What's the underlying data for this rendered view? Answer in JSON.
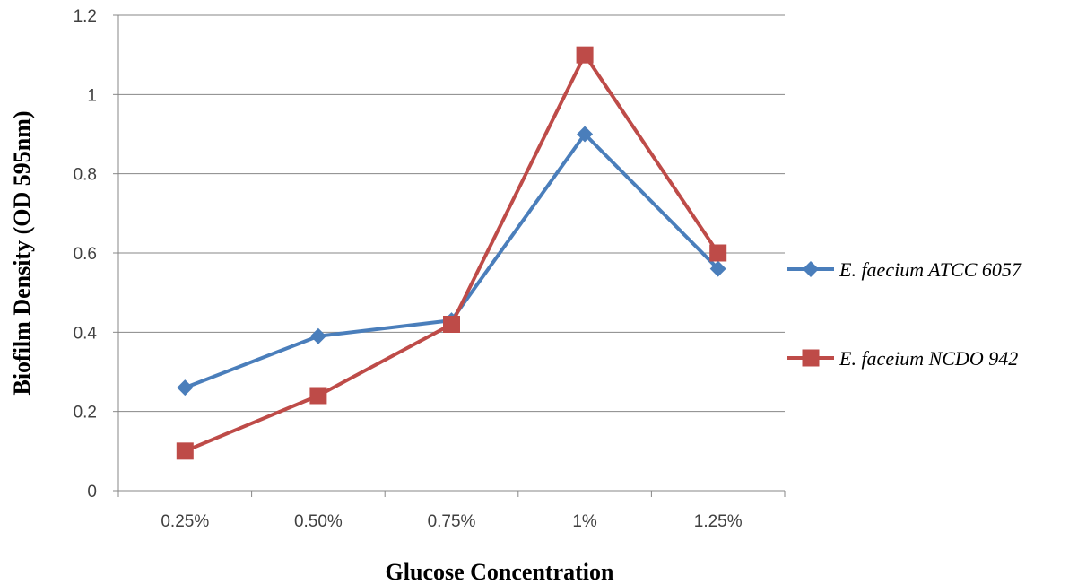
{
  "chart_data": {
    "type": "line",
    "title": "",
    "xlabel": "Glucose Concentration",
    "ylabel": "Biofilm Density (OD 595nm)",
    "categories": [
      "0.25%",
      "0.50%",
      "0.75%",
      "1%",
      "1.25%"
    ],
    "ylim": [
      0,
      1.2
    ],
    "yticks": [
      "0",
      "0.2",
      "0.4",
      "0.6",
      "0.8",
      "1",
      "1.2"
    ],
    "grid": true,
    "legend_position": "right",
    "series": [
      {
        "name": "E. faecium ATCC 6057",
        "values": [
          0.26,
          0.39,
          0.43,
          0.9,
          0.56
        ],
        "color": "#4a7ebb",
        "marker": "diamond"
      },
      {
        "name": "E. faceium NCDO 942",
        "values": [
          0.1,
          0.24,
          0.42,
          1.1,
          0.6
        ],
        "color": "#be4b48",
        "marker": "square"
      }
    ]
  }
}
